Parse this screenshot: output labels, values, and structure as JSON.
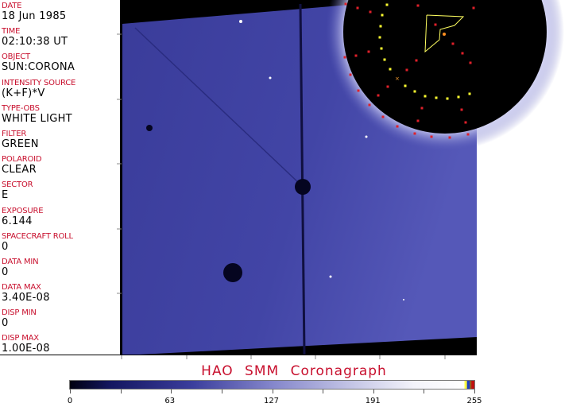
{
  "fields": [
    {
      "label": "DATE",
      "value": "18 Jun 1985"
    },
    {
      "label": "TIME",
      "value": "02:10:38 UT"
    },
    {
      "label": "OBJECT",
      "value": "SUN:CORONA"
    },
    {
      "label": "INTENSITY SOURCE",
      "value": "(K+F)*V"
    },
    {
      "label": "TYPE-OBS",
      "value": "WHITE LIGHT"
    },
    {
      "label": "FILTER",
      "value": "GREEN"
    },
    {
      "label": "POLAROID",
      "value": "CLEAR"
    },
    {
      "label": "SECTOR",
      "value": "E"
    },
    {
      "label": "EXPOSURE",
      "value": "6.144"
    },
    {
      "label": "SPACECRAFT ROLL",
      "value": "0"
    },
    {
      "label": "DATA MIN",
      "value": "0"
    },
    {
      "label": "DATA MAX",
      "value": "3.40E-08"
    },
    {
      "label": "DISP MIN",
      "value": "0"
    },
    {
      "label": "DISP MAX",
      "value": "1.00E-08"
    }
  ],
  "title": "HAO  SMM  Coronagraph",
  "colorbar": {
    "ticks": [
      "0",
      "63",
      "127",
      "191",
      "255"
    ],
    "min": 0,
    "max": 255
  },
  "colors": {
    "label": "#c8102e",
    "image_blue": "#3a3d9c",
    "grid_red": "#e0202a",
    "grid_yellow": "#ffff30"
  }
}
